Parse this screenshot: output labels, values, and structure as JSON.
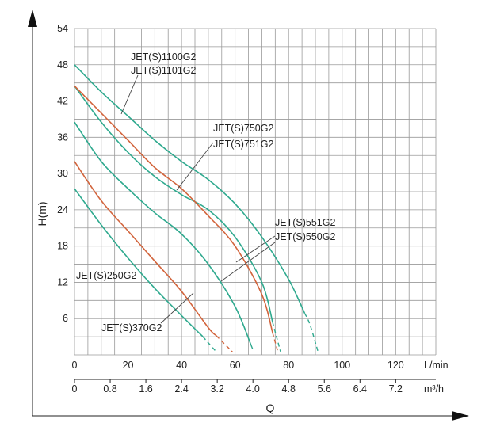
{
  "chart_data": {
    "type": "line",
    "ylabel": "H(m)",
    "xlabel": "Q",
    "flow_unit_lpm": "L/min",
    "flow_unit_m3h": "m³/h",
    "ylim": [
      0,
      54
    ],
    "xlim_lpm": [
      0,
      135
    ],
    "y_ticks": [
      "6",
      "12",
      "18",
      "24",
      "30",
      "36",
      "42",
      "48",
      "54"
    ],
    "x_ticks_lpm": [
      "0",
      "20",
      "40",
      "60",
      "80",
      "100",
      "120"
    ],
    "x_ticks_m3h": [
      "0",
      "0.8",
      "1.6",
      "2.4",
      "3.2",
      "4.0",
      "4.8",
      "5.6",
      "6.4",
      "7.2"
    ],
    "grid": true,
    "colors": {
      "teal": "#2ea98e",
      "orange": "#d2643c"
    },
    "series": [
      {
        "name": "JET(S)250G2",
        "color": "#2ea98e",
        "x": [
          0,
          10,
          20,
          30,
          40,
          48,
          53
        ],
        "y": [
          27.5,
          21.5,
          16,
          11,
          6.5,
          3,
          0.5
        ],
        "solid_until_x": 48
      },
      {
        "name": "JET(S)370G2",
        "color": "#d2643c",
        "x": [
          0,
          10,
          20,
          30,
          40,
          50,
          59
        ],
        "y": [
          32,
          25.5,
          20.5,
          15.5,
          10.5,
          4.5,
          0.5
        ],
        "solid_until_x": 53
      },
      {
        "name": "JET(S)550G2",
        "color": "#2ea98e",
        "x": [
          0,
          10,
          20,
          30,
          40,
          50,
          60,
          67
        ],
        "y": [
          38.5,
          32,
          27.5,
          23.5,
          20,
          15,
          8,
          0.5
        ],
        "solid_until_x": 66
      },
      {
        "name": "JET(S)551G2",
        "color": "#2ea98e",
        "x": [
          0,
          10,
          20,
          30,
          40,
          50,
          60,
          70,
          77
        ],
        "y": [
          44.5,
          38.5,
          33.5,
          29.5,
          26.5,
          24,
          19.5,
          12,
          0.5
        ],
        "solid_until_x": 74
      },
      {
        "name": "JET(S)750G2",
        "color": "#d2643c",
        "x": [
          0,
          10,
          20,
          30,
          40,
          50,
          60,
          70,
          76
        ],
        "y": [
          44.5,
          40,
          35.5,
          31,
          27.5,
          23,
          18,
          10,
          0.5
        ],
        "solid_until_x": 74
      },
      {
        "name": "JET(S)1100G2",
        "color": "#2ea98e",
        "x": [
          0,
          10,
          20,
          30,
          40,
          50,
          60,
          70,
          80,
          88,
          91
        ],
        "y": [
          48,
          43.5,
          39.5,
          35.5,
          32,
          29,
          25,
          19.5,
          12.5,
          5,
          0.5
        ],
        "solid_until_x": 86
      }
    ],
    "annotations": [
      {
        "text": "JET(S)1100G2",
        "series": "JET(S)1100G2"
      },
      {
        "text": "JET(S)1101G2",
        "series": "JET(S)1100G2"
      },
      {
        "text": "JET(S)750G2",
        "series": "JET(S)750G2"
      },
      {
        "text": "JET(S)751G2",
        "series": "JET(S)750G2"
      },
      {
        "text": "JET(S)551G2",
        "series": "JET(S)551G2"
      },
      {
        "text": "JET(S)550G2",
        "series": "JET(S)550G2"
      },
      {
        "text": "JET(S)250G2",
        "series": "JET(S)250G2"
      },
      {
        "text": "JET(S)370G2",
        "series": "JET(S)370G2"
      }
    ]
  }
}
